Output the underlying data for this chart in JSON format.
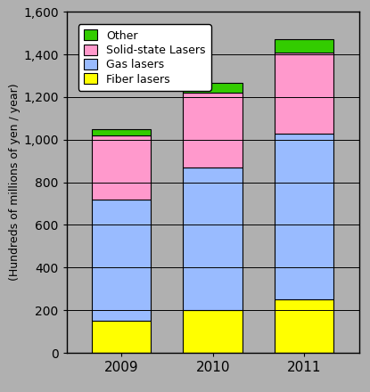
{
  "years": [
    "2009",
    "2010",
    "2011"
  ],
  "fiber_lasers": [
    150,
    200,
    250
  ],
  "gas_lasers": [
    570,
    670,
    780
  ],
  "solid_state_lasers": [
    300,
    350,
    380
  ],
  "other": [
    30,
    45,
    60
  ],
  "colors": {
    "fiber_lasers": "#FFFF00",
    "gas_lasers": "#99BBFF",
    "solid_state_lasers": "#FF99CC",
    "other": "#33CC00"
  },
  "ylabel": "(Hundreds of millions of yen / year)",
  "ylim": [
    0,
    1600
  ],
  "yticks": [
    0,
    200,
    400,
    600,
    800,
    1000,
    1200,
    1400,
    1600
  ],
  "background_color": "#B0B0B0",
  "bar_width": 0.65
}
